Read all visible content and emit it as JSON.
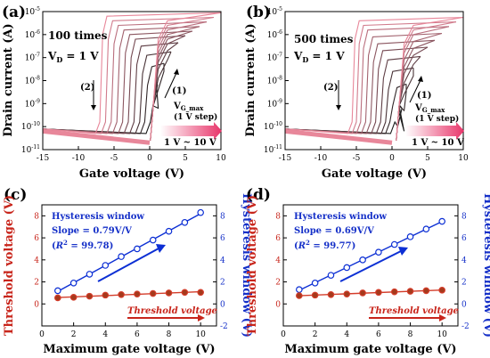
{
  "colors": {
    "iv_dark": "#1a1a1a",
    "iv_light": "#e8879a",
    "threshold": "#d43c2a",
    "hysteresis": "#0c2fd4",
    "text_blue": "#1530c8",
    "text_red": "#c8251b",
    "arrow_gradient_start": "#ffffff",
    "arrow_gradient_end": "#e8356a"
  },
  "panels": [
    {
      "id": "a",
      "label": "(a)",
      "cycles": "100 times",
      "vd": "V",
      "vd_sub": "D",
      "vd_value": " = 1 V",
      "branch1": "(1)",
      "branch2": "(2)",
      "vg_label": "V",
      "vg_sub": "G_max",
      "vg_step": "(1 V step)",
      "range": "1 V ~ 10 V",
      "xlabel": "Gate voltage (V)",
      "ylabel": "Drain current (A)"
    },
    {
      "id": "b",
      "label": "(b)",
      "cycles": "500 times",
      "vd": "V",
      "vd_sub": "D",
      "vd_value": " = 1 V",
      "branch1": "(1)",
      "branch2": "(2)",
      "vg_label": "V",
      "vg_sub": "G_max",
      "vg_step": "(1 V step)",
      "range": "1 V ~ 10 V",
      "xlabel": "Gate voltage (V)",
      "ylabel": "Drain current (A)"
    },
    {
      "id": "c",
      "label": "(c)",
      "legend_title": "Hysteresis window",
      "slope": "Slope = 0.79V/V",
      "r2_open": "(",
      "r2_symbol": "R",
      "r2_exp": "2",
      "r2_value": " = 99.78)",
      "threshold_label": "Threshold voltage",
      "xlabel": "Maximum gate voltage (V)",
      "ylabel_left": "Threshold voltage (V)",
      "ylabel_right": "Hysteresis window (V)"
    },
    {
      "id": "d",
      "label": "(d)",
      "legend_title": "Hysteresis window",
      "slope": "Slope = 0.69V/V",
      "r2_open": "(",
      "r2_symbol": "R",
      "r2_exp": "2",
      "r2_value": " = 99.77)",
      "threshold_label": "Threshold voltage",
      "xlabel": "Maximum gate voltage (V)",
      "ylabel_left": "Threshold voltage (V)",
      "ylabel_right": "Hysteresis window (V)"
    }
  ],
  "chart_data": [
    {
      "panel": "a",
      "type": "line",
      "xlim": [
        -15,
        10
      ],
      "ylim_log10": [
        -11,
        -5
      ],
      "x_ticks": [
        -15,
        -10,
        -5,
        0,
        5,
        10
      ],
      "y_ticks": [
        "10-11",
        "10-10",
        "10-9",
        "10-8",
        "10-7",
        "10-6",
        "10-5"
      ],
      "sweep_vg_max": [
        1,
        2,
        3,
        4,
        5,
        6,
        7,
        8,
        9,
        10
      ],
      "forward_turn_on_v": 0.3,
      "reverse_turn_off_v": [
        0.5,
        -0.3,
        -1.0,
        -1.8,
        -2.6,
        -3.4,
        -4.2,
        -5.0,
        -5.8,
        -6.6
      ],
      "on_current_log10": [
        -8.2,
        -7.4,
        -6.9,
        -6.5,
        -6.2,
        -6.0,
        -5.8,
        -5.6,
        -5.4,
        -5.2
      ],
      "off_current_log10_at_minus15": -10.2,
      "off_current_log10_at_0": -10.7
    },
    {
      "panel": "b",
      "type": "line",
      "xlim": [
        -15,
        10
      ],
      "ylim_log10": [
        -11,
        -5
      ],
      "x_ticks": [
        -15,
        -10,
        -5,
        0,
        5,
        10
      ],
      "y_ticks": [
        "10-11",
        "10-10",
        "10-9",
        "10-8",
        "10-7",
        "10-6",
        "10-5"
      ],
      "sweep_vg_max": [
        1,
        2,
        3,
        4,
        5,
        6,
        7,
        8,
        9,
        10
      ],
      "forward_turn_on_v": 0.8,
      "reverse_turn_off_v": [
        0.8,
        0.1,
        -0.5,
        -1.2,
        -1.9,
        -2.6,
        -3.3,
        -4.0,
        -4.6,
        -5.2
      ],
      "on_current_log10": [
        -9.2,
        -8.3,
        -7.6,
        -7.1,
        -6.7,
        -6.4,
        -6.1,
        -5.8,
        -5.6,
        -5.4
      ],
      "off_current_log10_at_minus15": -10.2,
      "off_current_log10_at_0": -10.7
    },
    {
      "panel": "c",
      "type": "line",
      "x": [
        1,
        2,
        3,
        4,
        5,
        6,
        7,
        8,
        9,
        10
      ],
      "xlim": [
        0,
        11
      ],
      "x_ticks": [
        0,
        2,
        4,
        6,
        8,
        10
      ],
      "ylim_left": [
        -2,
        9
      ],
      "y_ticks_left": [
        0,
        2,
        4,
        6,
        8
      ],
      "ylim_right": [
        -2,
        9
      ],
      "y_ticks_right": [
        -2,
        0,
        2,
        4,
        6,
        8
      ],
      "series": [
        {
          "name": "Hysteresis window",
          "axis": "right",
          "values": [
            1.2,
            1.9,
            2.7,
            3.5,
            4.3,
            5.0,
            5.8,
            6.6,
            7.4,
            8.3
          ]
        },
        {
          "name": "Threshold voltage",
          "axis": "left",
          "values": [
            0.55,
            0.6,
            0.7,
            0.8,
            0.85,
            0.9,
            0.95,
            1.0,
            1.05,
            1.05
          ]
        }
      ]
    },
    {
      "panel": "d",
      "type": "line",
      "x": [
        1,
        2,
        3,
        4,
        5,
        6,
        7,
        8,
        9,
        10
      ],
      "xlim": [
        0,
        11
      ],
      "x_ticks": [
        0,
        2,
        4,
        6,
        8,
        10
      ],
      "ylim_left": [
        -2,
        9
      ],
      "y_ticks_left": [
        0,
        2,
        4,
        6,
        8
      ],
      "ylim_right": [
        -2,
        9
      ],
      "y_ticks_right": [
        -2,
        0,
        2,
        4,
        6,
        8
      ],
      "series": [
        {
          "name": "Hysteresis window",
          "axis": "right",
          "values": [
            1.3,
            1.9,
            2.6,
            3.3,
            4.0,
            4.7,
            5.4,
            6.1,
            6.8,
            7.5
          ]
        },
        {
          "name": "Threshold voltage",
          "axis": "left",
          "values": [
            0.75,
            0.8,
            0.85,
            0.9,
            1.0,
            1.05,
            1.1,
            1.15,
            1.2,
            1.25
          ]
        }
      ]
    }
  ]
}
